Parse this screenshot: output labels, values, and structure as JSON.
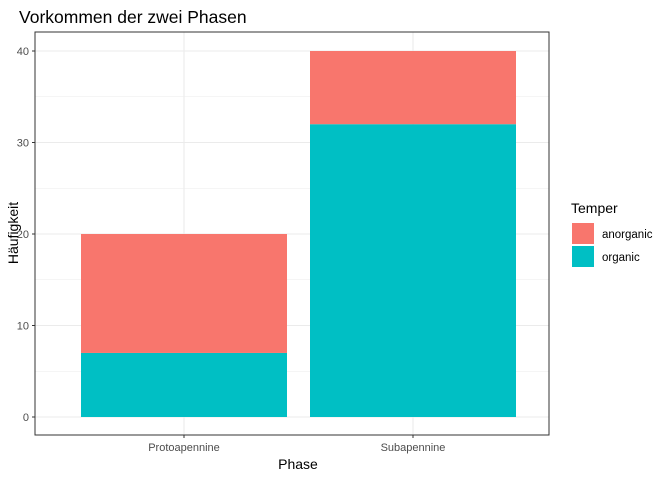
{
  "chart_data": {
    "type": "bar",
    "stacked": true,
    "title": "Vorkommen der zwei Phasen",
    "xlabel": "Phase",
    "ylabel": "Häufigkeit",
    "categories": [
      "Protoapennine",
      "Subapennine"
    ],
    "series": [
      {
        "name": "organic",
        "values": [
          7,
          32
        ],
        "color": "#00BFC4"
      },
      {
        "name": "anorganic",
        "values": [
          13,
          8
        ],
        "color": "#F8766D"
      }
    ],
    "ylim": [
      0,
      40
    ],
    "y_ticks": [
      "0",
      "10",
      "20",
      "30",
      "40"
    ],
    "grid": true,
    "legend": {
      "title": "Temper",
      "position": "right",
      "entries": [
        {
          "label": "anorganic",
          "color": "#F8766D"
        },
        {
          "label": "organic",
          "color": "#00BFC4"
        }
      ]
    }
  }
}
